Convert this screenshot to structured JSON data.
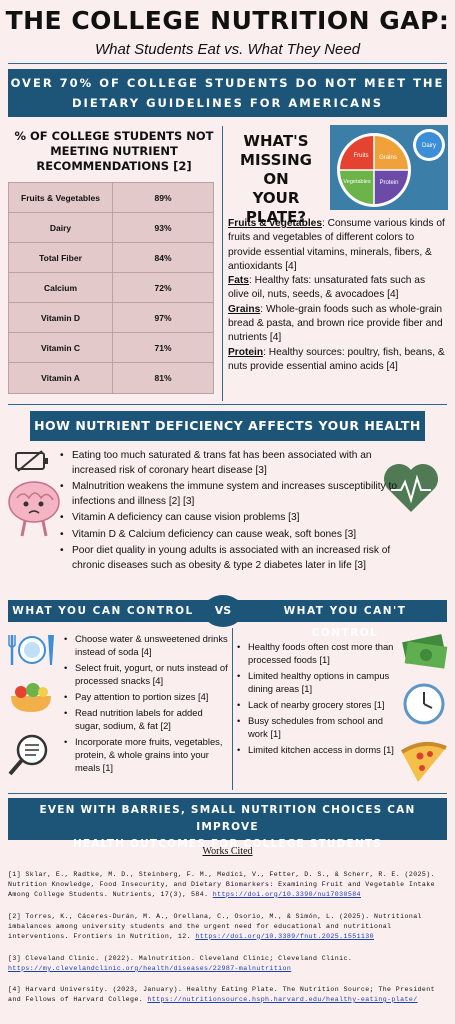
{
  "header": {
    "title": "THE COLLEGE NUTRITION GAP:",
    "subtitle": "What Students Eat vs. What They Need"
  },
  "banner_top": {
    "line1": "OVER 70% OF COLLEGE STUDENTS DO NOT MEET THE",
    "line2": "DIETARY GUIDELINES FOR AMERICANS"
  },
  "table_section": {
    "title_line1": "% OF COLLEGE STUDENTS NOT",
    "title_line2": "MEETING NUTRIENT",
    "title_line3": "RECOMMENDATIONS [2]",
    "rows": [
      {
        "label": "Fruits & Vegetables",
        "value": "89%"
      },
      {
        "label": "Dairy",
        "value": "93%"
      },
      {
        "label": "Total Fiber",
        "value": "84%"
      },
      {
        "label": "Calcium",
        "value": "72%"
      },
      {
        "label": "Vitamin D",
        "value": "97%"
      },
      {
        "label": "Vitamin C",
        "value": "71%"
      },
      {
        "label": "Vitamin A",
        "value": "81%"
      }
    ]
  },
  "plate_section": {
    "title_line1": "WHAT'S",
    "title_line2": "MISSING ON",
    "title_line3": "YOUR PLATE?",
    "plate_labels": {
      "fruits": "Fruits",
      "grains": "Grains",
      "vegetables": "Vegetables",
      "protein": "Protein",
      "dairy": "Dairy"
    },
    "plate_colors": {
      "fruits": "#e5432f",
      "grains": "#f0a23a",
      "vegetables": "#6cb34a",
      "protein": "#6b4aa8",
      "dairy": "#3c8fd6"
    },
    "items": [
      {
        "term": "Fruits & vegetables",
        "text": ": Consume various kinds of fruits and vegetables of different colors to provide essential vitamins, minerals, fibers, & antioxidants [4]"
      },
      {
        "term": "Fats",
        "text": ": Healthy fats: unsaturated fats such as olive oil, nuts, seeds, & avocadoes [4]"
      },
      {
        "term": "Grains",
        "text": ": Whole-grain foods such as whole-grain bread & pasta, and brown rice provide fiber and nutrients [4]"
      },
      {
        "term": "Protein",
        "text": ": Healthy sources: poultry, fish, beans, & nuts provide essential amino acids [4]"
      }
    ]
  },
  "banner_health": {
    "label": "HOW NUTRIENT DEFICIENCY AFFECTS YOUR HEALTH"
  },
  "health_bullets": [
    "Eating too much saturated & trans fat has been associated with an increased risk of coronary heart disease [3]",
    "Malnutrition weakens the immune system and increases susceptibility to infections and illness [2] [3]",
    "Vitamin A deficiency can cause vision problems [3]",
    "Vitamin D & Calcium deficiency can cause weak, soft bones [3]",
    "Poor diet quality in young adults is associated with an increased risk of chronic diseases such as obesity & type 2 diabetes later in life [3]"
  ],
  "control": {
    "left_label": "WHAT YOU CAN CONTROL",
    "vs_label": "VS",
    "right_label": "WHAT YOU CAN'T CONTROL",
    "can": [
      "Choose water & unsweetened drinks instead of soda [4]",
      "Select fruit, yogurt, or nuts instead of processed snacks [4]",
      "Pay attention to portion sizes [4]",
      "Read nutrition labels for added sugar, sodium, & fat [2]",
      "Incorporate more fruits, vegetables, protein, & whole grains into your meals [1]"
    ],
    "cant": [
      "Healthy foods often cost more than processed foods [1]",
      "Limited healthy options in campus dining areas [1]",
      "Lack of nearby grocery stores [1]",
      "Busy schedules from school and work [1]",
      "Limited kitchen access in dorms [1]"
    ]
  },
  "banner_bottom": {
    "line1": "EVEN WITH BARRIES, SMALL NUTRITION CHOICES CAN IMPROVE",
    "line2": "HEALTH OUTCOMES FOR COLLEGE STUDENTS"
  },
  "works_cited": {
    "title": "Works Cited",
    "refs": [
      {
        "text": "[1] Sklar, E., Radtke, M. D., Steinberg, F. M., Medici, V., Fetter, D. S., & Scherr, R. E. (2025). Nutrition Knowledge, Food Insecurity, and Dietary Biomarkers: Examining Fruit and Vegetable Intake Among College Students. Nutrients, 17(3), 584. ",
        "link": "https://doi.org/10.3390/nu17030584"
      },
      {
        "text": "[2] Torres, K., Cáceres-Durán, M. A., Orellana, C., Osorio, M., & Simón, L. (2025). Nutritional imbalances among university students and the urgent need for educational and nutritional interventions. Frontiers in Nutrition, 12. ",
        "link": "https://doi.org/10.3389/fnut.2025.1551130"
      },
      {
        "text": "[3] Cleveland Clinic. (2022). Malnutrition. Cleveland Clinic; Cleveland Clinic. ",
        "link": "https://my.clevelandclinic.org/health/diseases/22987-malnutrition"
      },
      {
        "text": "[4] Harvard University. (2023, January). Healthy Eating Plate. The Nutrition Source; The President and Fellows of Harvard College. ",
        "link": "https://nutritionsource.hsph.harvard.edu/healthy-eating-plate/"
      }
    ]
  }
}
